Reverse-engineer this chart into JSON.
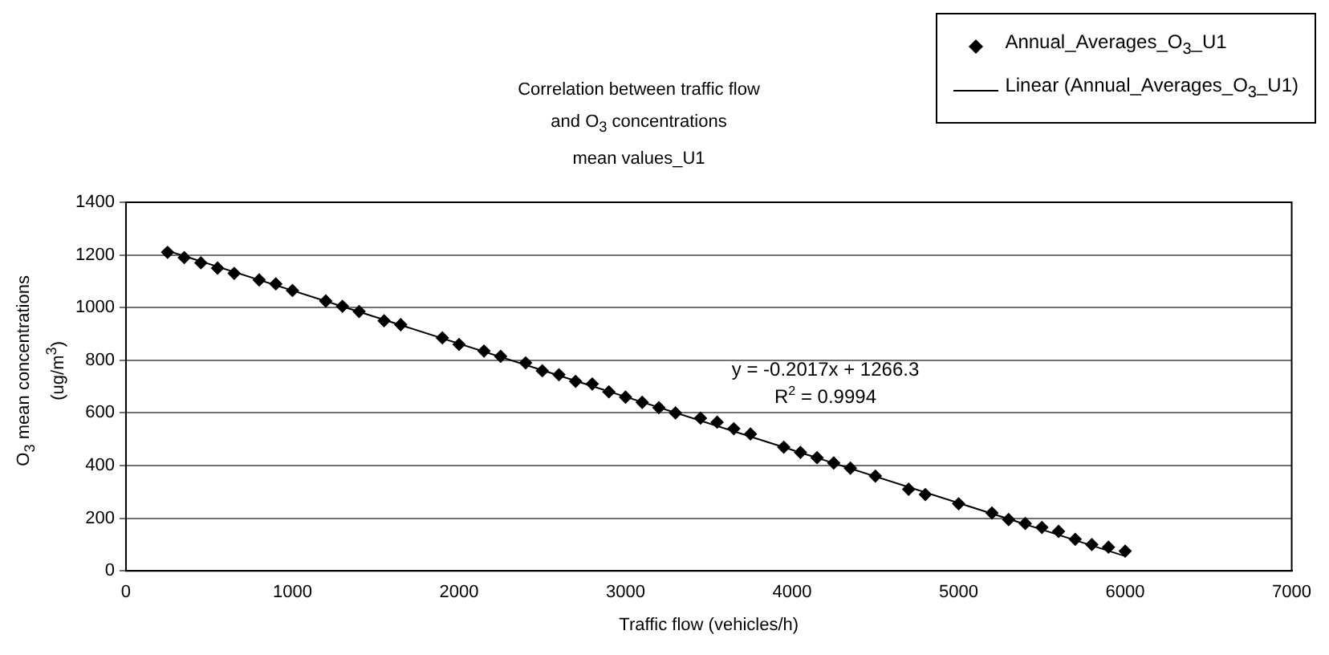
{
  "chart_data": {
    "type": "scatter",
    "title": "Correlation between traffic flow\nand O$_{3}$ concentrations\nmean values_U1",
    "xlabel": "Traffic flow (vehicles/h)",
    "ylabel": "O$_{3}$ mean concentrations\n(ug/m$^{3}$)",
    "series": [
      {
        "name": "Annual_Averages_O$_{3}$_U1",
        "color": "#000000",
        "marker": "diamond",
        "x": [
          250,
          350,
          450,
          550,
          650,
          800,
          900,
          1000,
          1200,
          1300,
          1400,
          1550,
          1650,
          1900,
          2000,
          2150,
          2250,
          2400,
          2500,
          2600,
          2700,
          2800,
          2900,
          3000,
          3100,
          3200,
          3300,
          3450,
          3550,
          3650,
          3750,
          3950,
          4050,
          4150,
          4250,
          4350,
          4500,
          4700,
          4800,
          5000,
          5200,
          5300,
          5400,
          5500,
          5600,
          5700,
          5800,
          5900,
          6000
        ],
        "values": [
          1210,
          1190,
          1170,
          1150,
          1130,
          1105,
          1090,
          1065,
          1025,
          1005,
          985,
          950,
          935,
          885,
          860,
          835,
          815,
          790,
          760,
          745,
          720,
          710,
          680,
          660,
          640,
          620,
          600,
          580,
          565,
          540,
          520,
          470,
          450,
          430,
          410,
          390,
          360,
          310,
          290,
          255,
          220,
          195,
          180,
          165,
          150,
          120,
          100,
          90,
          75
        ]
      },
      {
        "name": "Linear (Annual_Averages_O$_{3}$_U1)",
        "type": "line",
        "color": "#000000",
        "marker": "none",
        "line_style": "solid",
        "x": [
          250,
          6000
        ],
        "values": [
          1216,
          56
        ]
      }
    ],
    "xlim": [
      0,
      7000
    ],
    "xticks": [
      0,
      1000,
      2000,
      3000,
      4000,
      5000,
      6000,
      7000
    ],
    "ylim": [
      0,
      1400
    ],
    "yticks": [
      0,
      200,
      400,
      600,
      800,
      1000,
      1200,
      1400
    ],
    "grid": "y",
    "legend": "top right",
    "annotations": [
      "y = -0.2017x + 1266.3",
      "R$^{2}$ = 0.9994"
    ]
  }
}
